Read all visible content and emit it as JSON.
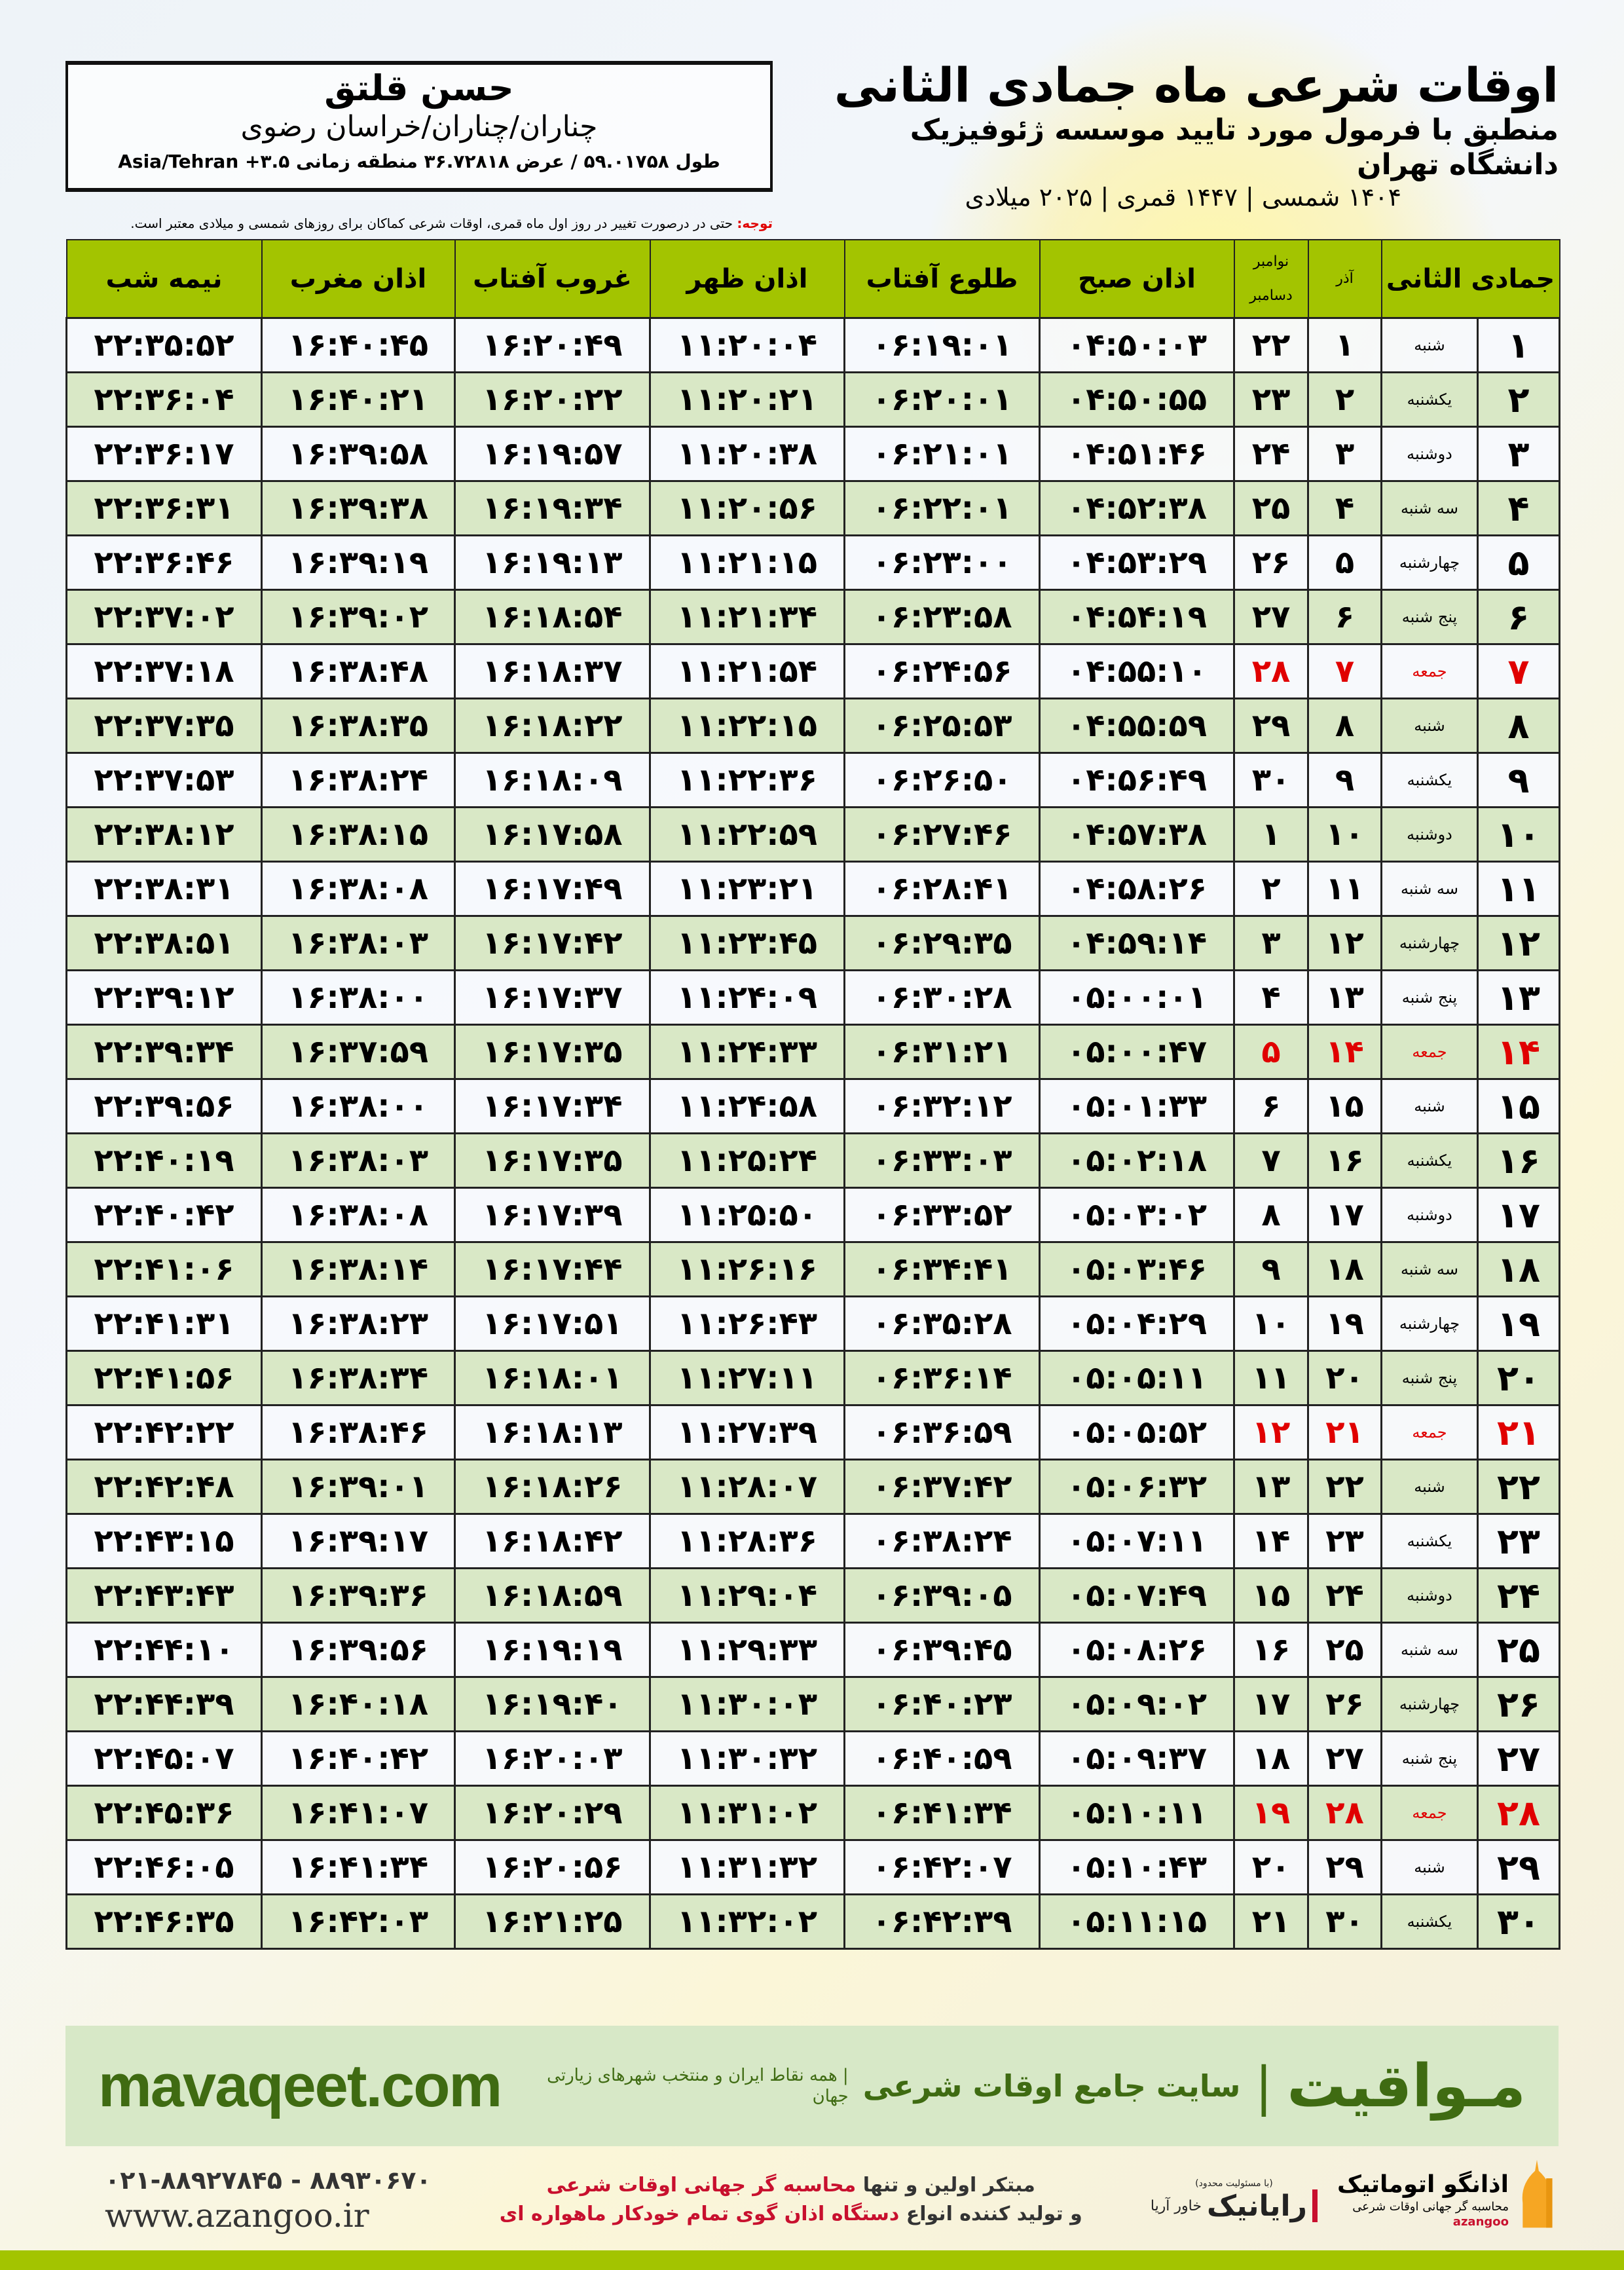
{
  "header": {
    "title": "اوقات شرعی ماه جمادی الثانی",
    "subtitle": "منطبق با فرمول مورد تایید موسسه ژئوفیزیک دانشگاه تهران",
    "dateline": "۱۴۰۴ شمسی | ۱۴۴۷ قمری | ۲۰۲۵ میلادی"
  },
  "location": {
    "name": "حسن قلتق",
    "place": "چناران/چناران/خراسان رضوی",
    "coords": "طول ۵۹.۰۱۷۵۸ / عرض ۳۶.۷۲۸۱۸ منطقه زمانی ۳.۵+ Asia/Tehran"
  },
  "note": {
    "label": "توجه:",
    "text": " حتی در درصورت تغییر در روز اول ماه قمری، اوقات شرعی کماکان برای روزهای شمسی و میلادی معتبر است."
  },
  "table": {
    "headers": {
      "month": "جمادی الثانی",
      "azar": "آذر",
      "nov": "نوامبر",
      "dec": "دسامبر",
      "fajr": "اذان صبح",
      "sunrise": "طلوع آفتاب",
      "dhuhr": "اذان ظهر",
      "sunset": "غروب آفتاب",
      "maghrib": "اذان مغرب",
      "midnight": "نیمه شب"
    },
    "holiday_color": "#e00000",
    "rows": [
      {
        "day": "۱",
        "weekday": "شنبه",
        "azar": "۱",
        "greg": "۲۲",
        "fajr": "۰۴:۵۰:۰۳",
        "sunrise": "۰۶:۱۹:۰۱",
        "dhuhr": "۱۱:۲۰:۰۴",
        "sunset": "۱۶:۲۰:۴۹",
        "maghrib": "۱۶:۴۰:۴۵",
        "midnight": "۲۲:۳۵:۵۲",
        "friday": false
      },
      {
        "day": "۲",
        "weekday": "یکشنبه",
        "azar": "۲",
        "greg": "۲۳",
        "fajr": "۰۴:۵۰:۵۵",
        "sunrise": "۰۶:۲۰:۰۱",
        "dhuhr": "۱۱:۲۰:۲۱",
        "sunset": "۱۶:۲۰:۲۲",
        "maghrib": "۱۶:۴۰:۲۱",
        "midnight": "۲۲:۳۶:۰۴",
        "friday": false
      },
      {
        "day": "۳",
        "weekday": "دوشنبه",
        "azar": "۳",
        "greg": "۲۴",
        "fajr": "۰۴:۵۱:۴۶",
        "sunrise": "۰۶:۲۱:۰۱",
        "dhuhr": "۱۱:۲۰:۳۸",
        "sunset": "۱۶:۱۹:۵۷",
        "maghrib": "۱۶:۳۹:۵۸",
        "midnight": "۲۲:۳۶:۱۷",
        "friday": false
      },
      {
        "day": "۴",
        "weekday": "سه شنبه",
        "azar": "۴",
        "greg": "۲۵",
        "fajr": "۰۴:۵۲:۳۸",
        "sunrise": "۰۶:۲۲:۰۱",
        "dhuhr": "۱۱:۲۰:۵۶",
        "sunset": "۱۶:۱۹:۳۴",
        "maghrib": "۱۶:۳۹:۳۸",
        "midnight": "۲۲:۳۶:۳۱",
        "friday": false
      },
      {
        "day": "۵",
        "weekday": "چهارشنبه",
        "azar": "۵",
        "greg": "۲۶",
        "fajr": "۰۴:۵۳:۲۹",
        "sunrise": "۰۶:۲۳:۰۰",
        "dhuhr": "۱۱:۲۱:۱۵",
        "sunset": "۱۶:۱۹:۱۳",
        "maghrib": "۱۶:۳۹:۱۹",
        "midnight": "۲۲:۳۶:۴۶",
        "friday": false
      },
      {
        "day": "۶",
        "weekday": "پنج شنبه",
        "azar": "۶",
        "greg": "۲۷",
        "fajr": "۰۴:۵۴:۱۹",
        "sunrise": "۰۶:۲۳:۵۸",
        "dhuhr": "۱۱:۲۱:۳۴",
        "sunset": "۱۶:۱۸:۵۴",
        "maghrib": "۱۶:۳۹:۰۲",
        "midnight": "۲۲:۳۷:۰۲",
        "friday": false
      },
      {
        "day": "۷",
        "weekday": "جمعه",
        "azar": "۷",
        "greg": "۲۸",
        "fajr": "۰۴:۵۵:۱۰",
        "sunrise": "۰۶:۲۴:۵۶",
        "dhuhr": "۱۱:۲۱:۵۴",
        "sunset": "۱۶:۱۸:۳۷",
        "maghrib": "۱۶:۳۸:۴۸",
        "midnight": "۲۲:۳۷:۱۸",
        "friday": true
      },
      {
        "day": "۸",
        "weekday": "شنبه",
        "azar": "۸",
        "greg": "۲۹",
        "fajr": "۰۴:۵۵:۵۹",
        "sunrise": "۰۶:۲۵:۵۳",
        "dhuhr": "۱۱:۲۲:۱۵",
        "sunset": "۱۶:۱۸:۲۲",
        "maghrib": "۱۶:۳۸:۳۵",
        "midnight": "۲۲:۳۷:۳۵",
        "friday": false
      },
      {
        "day": "۹",
        "weekday": "یکشنبه",
        "azar": "۹",
        "greg": "۳۰",
        "fajr": "۰۴:۵۶:۴۹",
        "sunrise": "۰۶:۲۶:۵۰",
        "dhuhr": "۱۱:۲۲:۳۶",
        "sunset": "۱۶:۱۸:۰۹",
        "maghrib": "۱۶:۳۸:۲۴",
        "midnight": "۲۲:۳۷:۵۳",
        "friday": false
      },
      {
        "day": "۱۰",
        "weekday": "دوشنبه",
        "azar": "۱۰",
        "greg": "۱",
        "fajr": "۰۴:۵۷:۳۸",
        "sunrise": "۰۶:۲۷:۴۶",
        "dhuhr": "۱۱:۲۲:۵۹",
        "sunset": "۱۶:۱۷:۵۸",
        "maghrib": "۱۶:۳۸:۱۵",
        "midnight": "۲۲:۳۸:۱۲",
        "friday": false
      },
      {
        "day": "۱۱",
        "weekday": "سه شنبه",
        "azar": "۱۱",
        "greg": "۲",
        "fajr": "۰۴:۵۸:۲۶",
        "sunrise": "۰۶:۲۸:۴۱",
        "dhuhr": "۱۱:۲۳:۲۱",
        "sunset": "۱۶:۱۷:۴۹",
        "maghrib": "۱۶:۳۸:۰۸",
        "midnight": "۲۲:۳۸:۳۱",
        "friday": false
      },
      {
        "day": "۱۲",
        "weekday": "چهارشنبه",
        "azar": "۱۲",
        "greg": "۳",
        "fajr": "۰۴:۵۹:۱۴",
        "sunrise": "۰۶:۲۹:۳۵",
        "dhuhr": "۱۱:۲۳:۴۵",
        "sunset": "۱۶:۱۷:۴۲",
        "maghrib": "۱۶:۳۸:۰۳",
        "midnight": "۲۲:۳۸:۵۱",
        "friday": false
      },
      {
        "day": "۱۳",
        "weekday": "پنج شنبه",
        "azar": "۱۳",
        "greg": "۴",
        "fajr": "۰۵:۰۰:۰۱",
        "sunrise": "۰۶:۳۰:۲۸",
        "dhuhr": "۱۱:۲۴:۰۹",
        "sunset": "۱۶:۱۷:۳۷",
        "maghrib": "۱۶:۳۸:۰۰",
        "midnight": "۲۲:۳۹:۱۲",
        "friday": false
      },
      {
        "day": "۱۴",
        "weekday": "جمعه",
        "azar": "۱۴",
        "greg": "۵",
        "fajr": "۰۵:۰۰:۴۷",
        "sunrise": "۰۶:۳۱:۲۱",
        "dhuhr": "۱۱:۲۴:۳۳",
        "sunset": "۱۶:۱۷:۳۵",
        "maghrib": "۱۶:۳۷:۵۹",
        "midnight": "۲۲:۳۹:۳۴",
        "friday": true
      },
      {
        "day": "۱۵",
        "weekday": "شنبه",
        "azar": "۱۵",
        "greg": "۶",
        "fajr": "۰۵:۰۱:۳۳",
        "sunrise": "۰۶:۳۲:۱۲",
        "dhuhr": "۱۱:۲۴:۵۸",
        "sunset": "۱۶:۱۷:۳۴",
        "maghrib": "۱۶:۳۸:۰۰",
        "midnight": "۲۲:۳۹:۵۶",
        "friday": false
      },
      {
        "day": "۱۶",
        "weekday": "یکشنبه",
        "azar": "۱۶",
        "greg": "۷",
        "fajr": "۰۵:۰۲:۱۸",
        "sunrise": "۰۶:۳۳:۰۳",
        "dhuhr": "۱۱:۲۵:۲۴",
        "sunset": "۱۶:۱۷:۳۵",
        "maghrib": "۱۶:۳۸:۰۳",
        "midnight": "۲۲:۴۰:۱۹",
        "friday": false
      },
      {
        "day": "۱۷",
        "weekday": "دوشنبه",
        "azar": "۱۷",
        "greg": "۸",
        "fajr": "۰۵:۰۳:۰۲",
        "sunrise": "۰۶:۳۳:۵۲",
        "dhuhr": "۱۱:۲۵:۵۰",
        "sunset": "۱۶:۱۷:۳۹",
        "maghrib": "۱۶:۳۸:۰۸",
        "midnight": "۲۲:۴۰:۴۲",
        "friday": false
      },
      {
        "day": "۱۸",
        "weekday": "سه شنبه",
        "azar": "۱۸",
        "greg": "۹",
        "fajr": "۰۵:۰۳:۴۶",
        "sunrise": "۰۶:۳۴:۴۱",
        "dhuhr": "۱۱:۲۶:۱۶",
        "sunset": "۱۶:۱۷:۴۴",
        "maghrib": "۱۶:۳۸:۱۴",
        "midnight": "۲۲:۴۱:۰۶",
        "friday": false
      },
      {
        "day": "۱۹",
        "weekday": "چهارشنبه",
        "azar": "۱۹",
        "greg": "۱۰",
        "fajr": "۰۵:۰۴:۲۹",
        "sunrise": "۰۶:۳۵:۲۸",
        "dhuhr": "۱۱:۲۶:۴۳",
        "sunset": "۱۶:۱۷:۵۱",
        "maghrib": "۱۶:۳۸:۲۳",
        "midnight": "۲۲:۴۱:۳۱",
        "friday": false
      },
      {
        "day": "۲۰",
        "weekday": "پنج شنبه",
        "azar": "۲۰",
        "greg": "۱۱",
        "fajr": "۰۵:۰۵:۱۱",
        "sunrise": "۰۶:۳۶:۱۴",
        "dhuhr": "۱۱:۲۷:۱۱",
        "sunset": "۱۶:۱۸:۰۱",
        "maghrib": "۱۶:۳۸:۳۴",
        "midnight": "۲۲:۴۱:۵۶",
        "friday": false
      },
      {
        "day": "۲۱",
        "weekday": "جمعه",
        "azar": "۲۱",
        "greg": "۱۲",
        "fajr": "۰۵:۰۵:۵۲",
        "sunrise": "۰۶:۳۶:۵۹",
        "dhuhr": "۱۱:۲۷:۳۹",
        "sunset": "۱۶:۱۸:۱۳",
        "maghrib": "۱۶:۳۸:۴۶",
        "midnight": "۲۲:۴۲:۲۲",
        "friday": true
      },
      {
        "day": "۲۲",
        "weekday": "شنبه",
        "azar": "۲۲",
        "greg": "۱۳",
        "fajr": "۰۵:۰۶:۳۲",
        "sunrise": "۰۶:۳۷:۴۲",
        "dhuhr": "۱۱:۲۸:۰۷",
        "sunset": "۱۶:۱۸:۲۶",
        "maghrib": "۱۶:۳۹:۰۱",
        "midnight": "۲۲:۴۲:۴۸",
        "friday": false
      },
      {
        "day": "۲۳",
        "weekday": "یکشنبه",
        "azar": "۲۳",
        "greg": "۱۴",
        "fajr": "۰۵:۰۷:۱۱",
        "sunrise": "۰۶:۳۸:۲۴",
        "dhuhr": "۱۱:۲۸:۳۶",
        "sunset": "۱۶:۱۸:۴۲",
        "maghrib": "۱۶:۳۹:۱۷",
        "midnight": "۲۲:۴۳:۱۵",
        "friday": false
      },
      {
        "day": "۲۴",
        "weekday": "دوشنبه",
        "azar": "۲۴",
        "greg": "۱۵",
        "fajr": "۰۵:۰۷:۴۹",
        "sunrise": "۰۶:۳۹:۰۵",
        "dhuhr": "۱۱:۲۹:۰۴",
        "sunset": "۱۶:۱۸:۵۹",
        "maghrib": "۱۶:۳۹:۳۶",
        "midnight": "۲۲:۴۳:۴۳",
        "friday": false
      },
      {
        "day": "۲۵",
        "weekday": "سه شنبه",
        "azar": "۲۵",
        "greg": "۱۶",
        "fajr": "۰۵:۰۸:۲۶",
        "sunrise": "۰۶:۳۹:۴۵",
        "dhuhr": "۱۱:۲۹:۳۳",
        "sunset": "۱۶:۱۹:۱۹",
        "maghrib": "۱۶:۳۹:۵۶",
        "midnight": "۲۲:۴۴:۱۰",
        "friday": false
      },
      {
        "day": "۲۶",
        "weekday": "چهارشنبه",
        "azar": "۲۶",
        "greg": "۱۷",
        "fajr": "۰۵:۰۹:۰۲",
        "sunrise": "۰۶:۴۰:۲۳",
        "dhuhr": "۱۱:۳۰:۰۳",
        "sunset": "۱۶:۱۹:۴۰",
        "maghrib": "۱۶:۴۰:۱۸",
        "midnight": "۲۲:۴۴:۳۹",
        "friday": false
      },
      {
        "day": "۲۷",
        "weekday": "پنج شنبه",
        "azar": "۲۷",
        "greg": "۱۸",
        "fajr": "۰۵:۰۹:۳۷",
        "sunrise": "۰۶:۴۰:۵۹",
        "dhuhr": "۱۱:۳۰:۳۲",
        "sunset": "۱۶:۲۰:۰۳",
        "maghrib": "۱۶:۴۰:۴۲",
        "midnight": "۲۲:۴۵:۰۷",
        "friday": false
      },
      {
        "day": "۲۸",
        "weekday": "جمعه",
        "azar": "۲۸",
        "greg": "۱۹",
        "fajr": "۰۵:۱۰:۱۱",
        "sunrise": "۰۶:۴۱:۳۴",
        "dhuhr": "۱۱:۳۱:۰۲",
        "sunset": "۱۶:۲۰:۲۹",
        "maghrib": "۱۶:۴۱:۰۷",
        "midnight": "۲۲:۴۵:۳۶",
        "friday": true
      },
      {
        "day": "۲۹",
        "weekday": "شنبه",
        "azar": "۲۹",
        "greg": "۲۰",
        "fajr": "۰۵:۱۰:۴۳",
        "sunrise": "۰۶:۴۲:۰۷",
        "dhuhr": "۱۱:۳۱:۳۲",
        "sunset": "۱۶:۲۰:۵۶",
        "maghrib": "۱۶:۴۱:۳۴",
        "midnight": "۲۲:۴۶:۰۵",
        "friday": false
      },
      {
        "day": "۳۰",
        "weekday": "یکشنبه",
        "azar": "۳۰",
        "greg": "۲۱",
        "fajr": "۰۵:۱۱:۱۵",
        "sunrise": "۰۶:۴۲:۳۹",
        "dhuhr": "۱۱:۳۲:۰۲",
        "sunset": "۱۶:۲۱:۲۵",
        "maghrib": "۱۶:۴۲:۰۳",
        "midnight": "۲۲:۴۶:۳۵",
        "friday": false
      }
    ]
  },
  "banner": {
    "site": "mavaqeet.com",
    "brand": "مـواقیت",
    "separator": "|",
    "slogan": "سایت جامع اوقات شرعی",
    "slogan2": "| همه نقاط ایران و منتخب شهرهای زیارتی جهان",
    "color": "#3f6b12"
  },
  "footer": {
    "phone": "۰۲۱-۸۸۹۲۷۸۴۵ - ۸۸۹۳۰۶۷۰",
    "web": "www.azangoo.ir",
    "promo_line1_a": "مبتکر اولین و تنها ",
    "promo_line1_b": "محاسبه گر جهانی اوقات شرعی",
    "promo_line2_a": "و تولید کننده انواع ",
    "promo_line2_b": "دستگاه اذان گوی تمام خودکار ماهواره ای",
    "logo1_name": "رایانیک",
    "logo1_side": "خاور آریا",
    "logo1_tiny": "(با مسئولیت محدود)",
    "logo2_name": "اذانگو اتوماتیک",
    "logo2_sub": "محاسبه گر جهانی اوقات شرعی",
    "logo2_en": "azangoo",
    "accent": "#c8102e"
  }
}
